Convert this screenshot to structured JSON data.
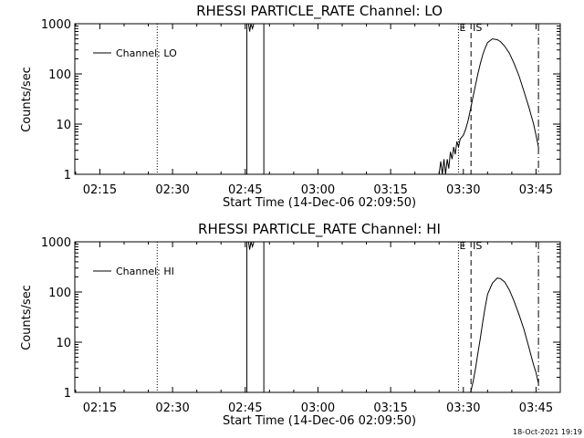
{
  "chart_data": [
    {
      "type": "line",
      "title": "RHESSI PARTICLE_RATE Channel: LO",
      "xlabel": "Start Time (14-Dec-06 02:09:50)",
      "ylabel": "Counts/sec",
      "yscale": "log",
      "ylim": [
        1,
        1000
      ],
      "xlim": [
        "02:09:50",
        "03:50:00"
      ],
      "x_ticks": [
        "02:15",
        "02:30",
        "02:45",
        "03:00",
        "03:15",
        "03:30",
        "03:45"
      ],
      "y_ticks": [
        "1",
        "10",
        "100",
        "1000"
      ],
      "legend": {
        "placement": "top-left",
        "entries": [
          "Channel: LO"
        ]
      },
      "grid": false,
      "series": [
        {
          "name": "Channel: LO",
          "x": [
            "02:09:55",
            "02:10:05",
            "02:45:40",
            "02:45:55",
            "02:46:10",
            "02:46:30",
            "02:46:45",
            "03:25:00",
            "03:25:20",
            "03:25:40",
            "03:26:00",
            "03:26:20",
            "03:26:40",
            "03:27:00",
            "03:27:20",
            "03:27:40",
            "03:28:00",
            "03:28:20",
            "03:28:40",
            "03:29:00",
            "03:29:20",
            "03:29:40",
            "03:30:00",
            "03:30:30",
            "03:31:00",
            "03:31:30",
            "03:32:00",
            "03:32:30",
            "03:33:00",
            "03:33:30",
            "03:34:00",
            "03:34:30",
            "03:35:00",
            "03:36:00",
            "03:37:00",
            "03:37:40",
            "03:38:30",
            "03:39:30",
            "03:40:30",
            "03:41:30",
            "03:42:30",
            "03:43:30",
            "03:44:30",
            "03:45:00",
            "03:45:30"
          ],
          "values": [
            900,
            900,
            1000,
            700,
            1000,
            800,
            1000,
            1.0,
            1.8,
            1.0,
            2.0,
            1.0,
            2.0,
            1.3,
            2.8,
            2.0,
            3.5,
            2.5,
            4.5,
            3.5,
            5.0,
            5.5,
            6.0,
            8.0,
            12,
            20,
            35,
            60,
            100,
            160,
            240,
            330,
            420,
            500,
            480,
            440,
            360,
            260,
            160,
            90,
            45,
            22,
            10,
            6,
            3.5
          ]
        }
      ],
      "annotations": [
        {
          "text": "E",
          "x": "03:29:00"
        },
        {
          "text": "IS",
          "x": "03:31:35"
        }
      ]
    },
    {
      "type": "line",
      "title": "RHESSI PARTICLE_RATE Channel: HI",
      "xlabel": "Start Time (14-Dec-06 02:09:50)",
      "ylabel": "Counts/sec",
      "yscale": "log",
      "ylim": [
        1,
        1000
      ],
      "xlim": [
        "02:09:50",
        "03:50:00"
      ],
      "x_ticks": [
        "02:15",
        "02:30",
        "02:45",
        "03:00",
        "03:15",
        "03:30",
        "03:45"
      ],
      "y_ticks": [
        "1",
        "10",
        "100",
        "1000"
      ],
      "legend": {
        "placement": "top-left",
        "entries": [
          "Channel: HI"
        ]
      },
      "grid": false,
      "series": [
        {
          "name": "Channel: HI",
          "x": [
            "02:09:55",
            "02:10:05",
            "02:45:40",
            "02:45:55",
            "02:46:10",
            "02:46:30",
            "02:46:45",
            "03:31:30",
            "03:32:00",
            "03:32:30",
            "03:33:00",
            "03:33:30",
            "03:34:00",
            "03:34:30",
            "03:35:00",
            "03:36:00",
            "03:37:00",
            "03:37:40",
            "03:38:30",
            "03:39:30",
            "03:40:30",
            "03:41:30",
            "03:42:30",
            "03:43:30",
            "03:44:30",
            "03:45:00",
            "03:45:30"
          ],
          "values": [
            900,
            900,
            1000,
            700,
            1000,
            800,
            1000,
            1.0,
            1.6,
            3.0,
            6.0,
            12,
            25,
            50,
            90,
            150,
            190,
            185,
            160,
            110,
            65,
            35,
            18,
            8,
            3.5,
            2.5,
            1.5
          ]
        }
      ],
      "annotations": [
        {
          "text": "E",
          "x": "03:29:00"
        },
        {
          "text": "IS",
          "x": "03:31:35"
        }
      ]
    }
  ],
  "footer": {
    "timestamp": "18-Oct-2021 19:19"
  }
}
